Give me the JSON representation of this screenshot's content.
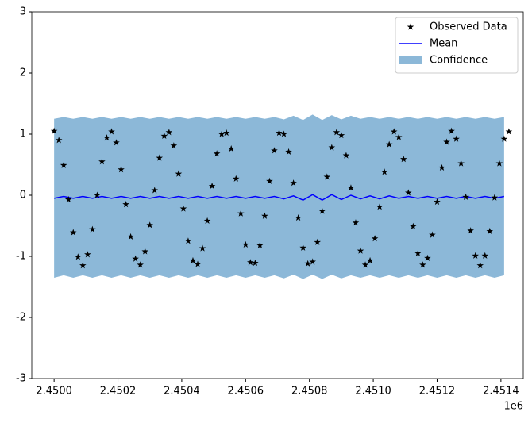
{
  "chart_data": {
    "type": "line",
    "x_offset_label": "1e6",
    "xlim": [
      2449930,
      2451470
    ],
    "xticks": [
      {
        "value": 2450000,
        "label": "2.4500"
      },
      {
        "value": 2450200,
        "label": "2.4502"
      },
      {
        "value": 2450400,
        "label": "2.4504"
      },
      {
        "value": 2450600,
        "label": "2.4506"
      },
      {
        "value": 2450800,
        "label": "2.4508"
      },
      {
        "value": 2451000,
        "label": "2.4510"
      },
      {
        "value": 2451200,
        "label": "2.4512"
      },
      {
        "value": 2451400,
        "label": "2.4514"
      }
    ],
    "ylim": [
      -3,
      3
    ],
    "yticks": [
      -3,
      -2,
      -1,
      0,
      1,
      2,
      3
    ],
    "legend": "upper right",
    "series": [
      {
        "name": "Observed Data",
        "type": "scatter",
        "color": "#000000",
        "x": [
          2450000,
          2450015,
          2450030,
          2450045,
          2450060,
          2450075,
          2450090,
          2450105,
          2450120,
          2450135,
          2450150,
          2450165,
          2450180,
          2450195,
          2450210,
          2450225,
          2450240,
          2450255,
          2450270,
          2450285,
          2450300,
          2450315,
          2450330,
          2450345,
          2450360,
          2450375,
          2450390,
          2450405,
          2450420,
          2450435,
          2450450,
          2450465,
          2450480,
          2450495,
          2450510,
          2450525,
          2450540,
          2450555,
          2450570,
          2450585,
          2450600,
          2450615,
          2450630,
          2450645,
          2450660,
          2450675,
          2450690,
          2450705,
          2450720,
          2450735,
          2450750,
          2450765,
          2450780,
          2450795,
          2450810,
          2450825,
          2450840,
          2450855,
          2450870,
          2450885,
          2450900,
          2450915,
          2450930,
          2450945,
          2450960,
          2450975,
          2450990,
          2451005,
          2451020,
          2451035,
          2451050,
          2451065,
          2451080,
          2451095,
          2451110,
          2451125,
          2451140,
          2451155,
          2451170,
          2451185,
          2451200,
          2451215,
          2451230,
          2451245,
          2451260,
          2451275,
          2451290,
          2451305,
          2451320,
          2451335,
          2451350,
          2451365,
          2451380,
          2451395,
          2451410,
          2451425
        ],
        "values": [
          1.05,
          0.9,
          0.49,
          -0.07,
          -0.61,
          -1.01,
          -1.15,
          -0.97,
          -0.56,
          0.0,
          0.55,
          0.94,
          1.04,
          0.86,
          0.42,
          -0.15,
          -0.68,
          -1.04,
          -1.14,
          -0.92,
          -0.49,
          0.08,
          0.61,
          0.97,
          1.03,
          0.81,
          0.35,
          -0.22,
          -0.75,
          -1.07,
          -1.13,
          -0.87,
          -0.42,
          0.15,
          0.68,
          1.0,
          1.02,
          0.76,
          0.27,
          -0.3,
          -0.81,
          -1.1,
          -1.11,
          -0.82,
          -0.34,
          0.23,
          0.73,
          1.02,
          1.0,
          0.71,
          0.2,
          -0.37,
          -0.86,
          -1.12,
          -1.09,
          -0.77,
          -0.26,
          0.3,
          0.78,
          1.03,
          0.98,
          0.65,
          0.12,
          -0.45,
          -0.91,
          -1.14,
          -1.07,
          -0.71,
          -0.19,
          0.38,
          0.83,
          1.04,
          0.95,
          0.59,
          0.04,
          -0.51,
          -0.95,
          -1.14,
          -1.03,
          -0.65,
          -0.11,
          0.45,
          0.87,
          1.05,
          0.92,
          0.52,
          -0.03,
          -0.58,
          -0.99,
          -1.15,
          -0.99,
          -0.59,
          -0.04,
          0.52,
          0.92,
          1.04
        ]
      },
      {
        "name": "Mean",
        "type": "line",
        "color": "#0000ff",
        "x": [
          2450000,
          2450030,
          2450060,
          2450090,
          2450120,
          2450150,
          2450180,
          2450210,
          2450240,
          2450270,
          2450300,
          2450330,
          2450360,
          2450390,
          2450420,
          2450450,
          2450480,
          2450510,
          2450540,
          2450570,
          2450600,
          2450630,
          2450660,
          2450690,
          2450720,
          2450750,
          2450780,
          2450810,
          2450840,
          2450870,
          2450900,
          2450930,
          2450960,
          2450990,
          2451020,
          2451050,
          2451080,
          2451110,
          2451140,
          2451170,
          2451200,
          2451230,
          2451260,
          2451290,
          2451320,
          2451350,
          2451380,
          2451410
        ],
        "values": [
          -0.05,
          -0.02,
          -0.05,
          -0.02,
          -0.05,
          -0.02,
          -0.05,
          -0.02,
          -0.05,
          -0.02,
          -0.05,
          -0.02,
          -0.05,
          -0.02,
          -0.05,
          -0.02,
          -0.05,
          -0.02,
          -0.05,
          -0.02,
          -0.05,
          -0.02,
          -0.05,
          -0.02,
          -0.06,
          -0.01,
          -0.08,
          0.01,
          -0.08,
          0.01,
          -0.07,
          0.0,
          -0.06,
          -0.01,
          -0.06,
          -0.01,
          -0.05,
          -0.02,
          -0.05,
          -0.02,
          -0.05,
          -0.02,
          -0.05,
          -0.02,
          -0.05,
          -0.02,
          -0.05,
          -0.02
        ]
      },
      {
        "name": "Confidence",
        "type": "band",
        "color": "#8cb8d8",
        "x": [
          2450000,
          2450030,
          2450060,
          2450090,
          2450120,
          2450150,
          2450180,
          2450210,
          2450240,
          2450270,
          2450300,
          2450330,
          2450360,
          2450390,
          2450420,
          2450450,
          2450480,
          2450510,
          2450540,
          2450570,
          2450600,
          2450630,
          2450660,
          2450690,
          2450720,
          2450750,
          2450780,
          2450810,
          2450840,
          2450870,
          2450900,
          2450930,
          2450960,
          2450990,
          2451020,
          2451050,
          2451080,
          2451110,
          2451140,
          2451170,
          2451200,
          2451230,
          2451260,
          2451290,
          2451320,
          2451350,
          2451380,
          2451410
        ],
        "lower": [
          -1.35,
          -1.31,
          -1.35,
          -1.31,
          -1.35,
          -1.31,
          -1.35,
          -1.31,
          -1.35,
          -1.31,
          -1.35,
          -1.31,
          -1.35,
          -1.31,
          -1.35,
          -1.31,
          -1.35,
          -1.31,
          -1.35,
          -1.31,
          -1.35,
          -1.31,
          -1.35,
          -1.31,
          -1.36,
          -1.3,
          -1.37,
          -1.3,
          -1.37,
          -1.3,
          -1.36,
          -1.31,
          -1.35,
          -1.31,
          -1.35,
          -1.31,
          -1.35,
          -1.31,
          -1.35,
          -1.31,
          -1.35,
          -1.31,
          -1.35,
          -1.31,
          -1.35,
          -1.31,
          -1.35,
          -1.31
        ],
        "upper": [
          1.25,
          1.28,
          1.25,
          1.28,
          1.25,
          1.28,
          1.25,
          1.28,
          1.25,
          1.28,
          1.25,
          1.28,
          1.25,
          1.28,
          1.25,
          1.28,
          1.25,
          1.28,
          1.25,
          1.28,
          1.25,
          1.28,
          1.25,
          1.28,
          1.24,
          1.3,
          1.23,
          1.32,
          1.23,
          1.31,
          1.24,
          1.3,
          1.25,
          1.28,
          1.25,
          1.28,
          1.25,
          1.28,
          1.25,
          1.28,
          1.25,
          1.28,
          1.25,
          1.28,
          1.25,
          1.28,
          1.25,
          1.28
        ]
      }
    ]
  }
}
